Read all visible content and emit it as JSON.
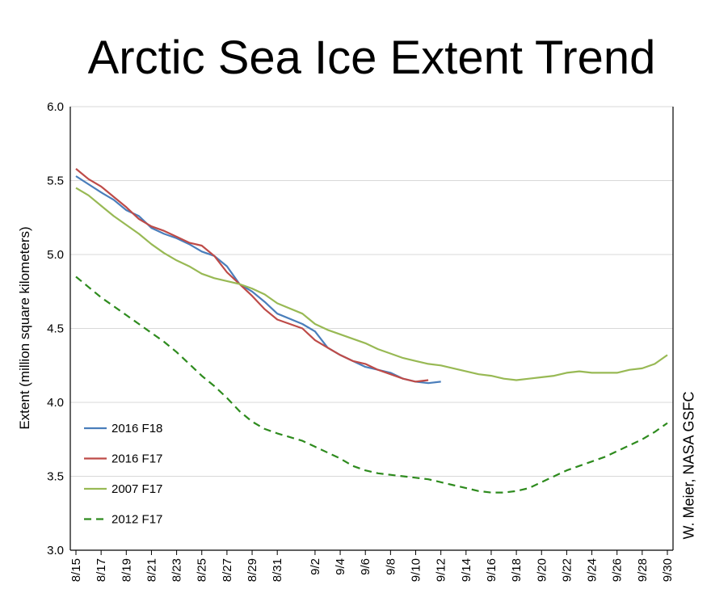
{
  "chart_data": {
    "type": "line",
    "title": "Arctic Sea Ice Extent Trend",
    "ylabel": "Extent (million square kilometers)",
    "xlabel": "",
    "credit": "W. Meier, NASA GSFC",
    "ylim": [
      3.0,
      6.0
    ],
    "yticks": [
      "3.0",
      "3.5",
      "4.0",
      "4.5",
      "5.0",
      "5.5",
      "6.0"
    ],
    "grid": "horizontal",
    "legend_position": "lower-left",
    "x_tick_labels": [
      "8/15",
      "8/17",
      "8/19",
      "8/21",
      "8/23",
      "8/25",
      "8/27",
      "8/29",
      "8/31",
      "9/2",
      "9/4",
      "9/6",
      "9/8",
      "9/10",
      "9/12",
      "9/14",
      "9/16",
      "9/18",
      "9/20",
      "9/22",
      "9/24",
      "9/26",
      "9/28",
      "9/30"
    ],
    "series": [
      {
        "name": "2016 F18",
        "color": "#4a7ebb",
        "dash": false,
        "points": [
          [
            "8/15",
            5.53
          ],
          [
            "8/17",
            5.42
          ],
          [
            "8/18",
            5.37
          ],
          [
            "8/19",
            5.3
          ],
          [
            "8/20",
            5.26
          ],
          [
            "8/21",
            5.18
          ],
          [
            "8/22",
            5.14
          ],
          [
            "8/23",
            5.11
          ],
          [
            "8/24",
            5.07
          ],
          [
            "8/25",
            5.02
          ],
          [
            "8/26",
            4.99
          ],
          [
            "8/27",
            4.92
          ],
          [
            "8/28",
            4.8
          ],
          [
            "8/29",
            4.75
          ],
          [
            "8/30",
            4.68
          ],
          [
            "8/31",
            4.6
          ],
          [
            "9/1",
            4.53
          ],
          [
            "9/2",
            4.48
          ],
          [
            "9/3",
            4.37
          ],
          [
            "9/4",
            4.32
          ],
          [
            "9/5",
            4.28
          ],
          [
            "9/6",
            4.24
          ],
          [
            "9/7",
            4.22
          ],
          [
            "9/8",
            4.2
          ],
          [
            "9/9",
            4.16
          ],
          [
            "9/10",
            4.14
          ],
          [
            "9/11",
            4.13
          ],
          [
            "9/12",
            4.14
          ]
        ]
      },
      {
        "name": "2016 F17",
        "color": "#be4b48",
        "dash": false,
        "points": [
          [
            "8/15",
            5.58
          ],
          [
            "8/16",
            5.51
          ],
          [
            "8/17",
            5.46
          ],
          [
            "8/18",
            5.39
          ],
          [
            "8/19",
            5.32
          ],
          [
            "8/20",
            5.24
          ],
          [
            "8/21",
            5.19
          ],
          [
            "8/22",
            5.16
          ],
          [
            "8/23",
            5.12
          ],
          [
            "8/24",
            5.08
          ],
          [
            "8/25",
            5.06
          ],
          [
            "8/26",
            4.99
          ],
          [
            "8/27",
            4.88
          ],
          [
            "8/28",
            4.8
          ],
          [
            "8/29",
            4.72
          ],
          [
            "8/30",
            4.63
          ],
          [
            "8/31",
            4.56
          ],
          [
            "9/1",
            4.5
          ],
          [
            "9/2",
            4.42
          ],
          [
            "9/3",
            4.37
          ],
          [
            "9/4",
            4.32
          ],
          [
            "9/5",
            4.28
          ],
          [
            "9/6",
            4.26
          ],
          [
            "9/7",
            4.22
          ],
          [
            "9/8",
            4.19
          ],
          [
            "9/9",
            4.16
          ],
          [
            "9/10",
            4.14
          ],
          [
            "9/11",
            4.15
          ]
        ]
      },
      {
        "name": "2007 F17",
        "color": "#98b954",
        "dash": false,
        "points": [
          [
            "8/15",
            5.45
          ],
          [
            "8/16",
            5.4
          ],
          [
            "8/17",
            5.33
          ],
          [
            "8/18",
            5.26
          ],
          [
            "8/19",
            5.2
          ],
          [
            "8/20",
            5.14
          ],
          [
            "8/21",
            5.07
          ],
          [
            "8/22",
            5.01
          ],
          [
            "8/23",
            4.96
          ],
          [
            "8/24",
            4.92
          ],
          [
            "8/25",
            4.87
          ],
          [
            "8/26",
            4.84
          ],
          [
            "8/27",
            4.82
          ],
          [
            "8/28",
            4.8
          ],
          [
            "8/29",
            4.77
          ],
          [
            "8/30",
            4.73
          ],
          [
            "8/31",
            4.67
          ],
          [
            "9/1",
            4.6
          ],
          [
            "9/2",
            4.53
          ],
          [
            "9/3",
            4.49
          ],
          [
            "9/4",
            4.46
          ],
          [
            "9/5",
            4.43
          ],
          [
            "9/6",
            4.4
          ],
          [
            "9/7",
            4.36
          ],
          [
            "9/8",
            4.33
          ],
          [
            "9/9",
            4.3
          ],
          [
            "9/10",
            4.28
          ],
          [
            "9/11",
            4.26
          ],
          [
            "9/12",
            4.25
          ],
          [
            "9/13",
            4.23
          ],
          [
            "9/14",
            4.21
          ],
          [
            "9/15",
            4.19
          ],
          [
            "9/16",
            4.18
          ],
          [
            "9/17",
            4.16
          ],
          [
            "9/18",
            4.15
          ],
          [
            "9/19",
            4.16
          ],
          [
            "9/20",
            4.17
          ],
          [
            "9/21",
            4.18
          ],
          [
            "9/22",
            4.2
          ],
          [
            "9/23",
            4.21
          ],
          [
            "9/24",
            4.2
          ],
          [
            "9/25",
            4.2
          ],
          [
            "9/26",
            4.2
          ],
          [
            "9/27",
            4.22
          ],
          [
            "9/28",
            4.23
          ],
          [
            "9/29",
            4.26
          ],
          [
            "9/30",
            4.32
          ]
        ]
      },
      {
        "name": "2012 F17",
        "color": "#2e8b1e",
        "dash": true,
        "points": [
          [
            "8/15",
            4.85
          ],
          [
            "8/16",
            4.78
          ],
          [
            "8/17",
            4.71
          ],
          [
            "8/18",
            4.65
          ],
          [
            "8/19",
            4.59
          ],
          [
            "8/20",
            4.53
          ],
          [
            "8/21",
            4.47
          ],
          [
            "8/22",
            4.41
          ],
          [
            "8/23",
            4.34
          ],
          [
            "8/24",
            4.26
          ],
          [
            "8/25",
            4.18
          ],
          [
            "8/26",
            4.11
          ],
          [
            "8/27",
            4.03
          ],
          [
            "8/28",
            3.94
          ],
          [
            "8/29",
            3.87
          ],
          [
            "8/30",
            3.82
          ],
          [
            "8/31",
            3.79
          ],
          [
            "9/1",
            3.74
          ],
          [
            "9/2",
            3.7
          ],
          [
            "9/3",
            3.66
          ],
          [
            "9/4",
            3.62
          ],
          [
            "9/5",
            3.57
          ],
          [
            "9/6",
            3.54
          ],
          [
            "9/7",
            3.52
          ],
          [
            "9/8",
            3.51
          ],
          [
            "9/9",
            3.5
          ],
          [
            "9/10",
            3.49
          ],
          [
            "9/11",
            3.48
          ],
          [
            "9/12",
            3.46
          ],
          [
            "9/13",
            3.44
          ],
          [
            "9/14",
            3.42
          ],
          [
            "9/15",
            3.4
          ],
          [
            "9/16",
            3.39
          ],
          [
            "9/17",
            3.39
          ],
          [
            "9/18",
            3.4
          ],
          [
            "9/19",
            3.42
          ],
          [
            "9/20",
            3.46
          ],
          [
            "9/21",
            3.5
          ],
          [
            "9/22",
            3.54
          ],
          [
            "9/23",
            3.57
          ],
          [
            "9/24",
            3.6
          ],
          [
            "9/25",
            3.63
          ],
          [
            "9/26",
            3.67
          ],
          [
            "9/27",
            3.71
          ],
          [
            "9/28",
            3.75
          ],
          [
            "9/29",
            3.8
          ],
          [
            "9/30",
            3.86
          ]
        ]
      }
    ]
  }
}
